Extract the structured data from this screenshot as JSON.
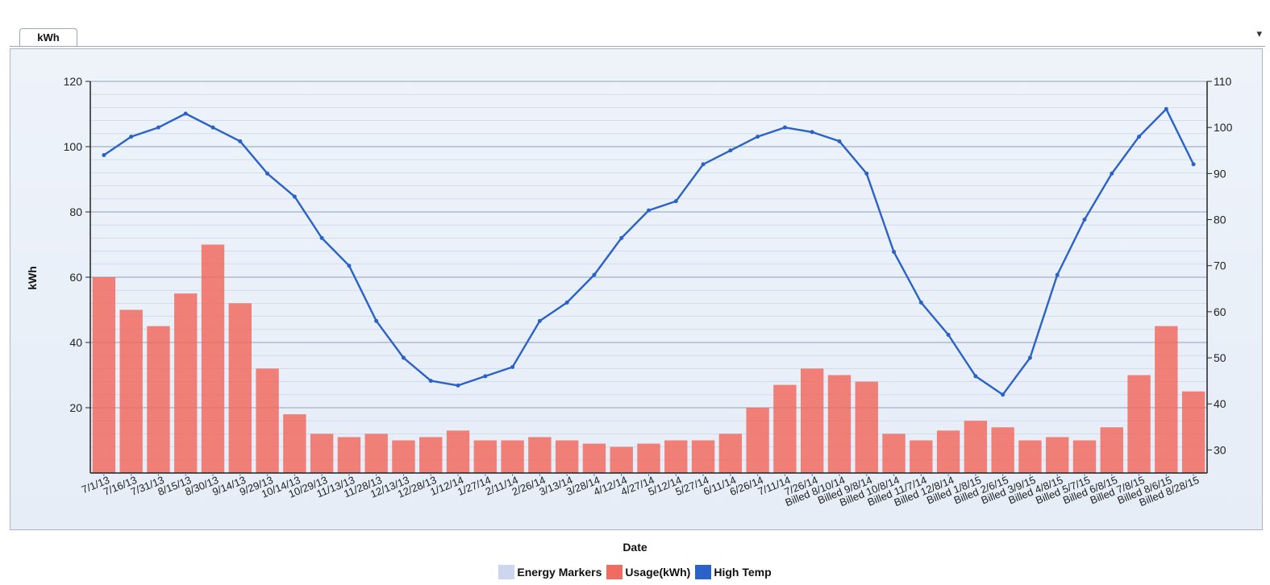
{
  "tab": {
    "label": "kWh"
  },
  "chart_data": {
    "type": "bar",
    "xlabel": "Date",
    "ylabel": "kWh",
    "ylim": [
      0,
      120
    ],
    "y2lim": [
      25,
      110
    ],
    "yticks": [
      20,
      40,
      60,
      80,
      100,
      120
    ],
    "y2ticks": [
      30,
      40,
      50,
      60,
      70,
      80,
      90,
      100,
      110
    ],
    "grid": true,
    "legend_position": "bottom",
    "colors": {
      "Energy Markers": "#cdd6ef",
      "Usage(kWh)": "#f06b60",
      "High Temp": "#2a62c9"
    },
    "x_tick_labels": [
      "7/1/13",
      "7/16/13",
      "7/31/13",
      "8/15/13",
      "8/30/13",
      "9/14/13",
      "9/29/13",
      "10/14/13",
      "10/29/13",
      "11/13/13",
      "11/28/13",
      "12/13/13",
      "12/28/13",
      "1/12/14",
      "1/27/14",
      "2/11/14",
      "2/26/14",
      "3/13/14",
      "3/28/14",
      "4/12/14",
      "4/27/14",
      "5/12/14",
      "5/27/14",
      "6/11/14",
      "6/26/14",
      "7/11/14",
      "7/26/14",
      "Billed 8/10/14",
      "Billed 9/8/14",
      "Billed 10/8/14",
      "Billed 11/7/14",
      "Billed 12/8/14",
      "Billed 1/8/15",
      "Billed 2/6/15",
      "Billed 3/9/15",
      "Billed 4/8/15",
      "Billed 5/7/15",
      "Billed 6/8/15",
      "Billed 7/8/15",
      "Billed 8/6/15",
      "Billed 8/28/15"
    ],
    "series": [
      {
        "name": "Usage(kWh)",
        "axis": "left",
        "type": "bar",
        "x": [
          "7/1/13",
          "7/16/13",
          "7/31/13",
          "8/15/13",
          "8/30/13",
          "9/14/13",
          "9/29/13",
          "10/14/13",
          "10/29/13",
          "11/13/13",
          "11/28/13",
          "12/13/13",
          "12/28/13",
          "1/12/14",
          "1/27/14",
          "2/11/14",
          "2/26/14",
          "3/13/14",
          "3/28/14",
          "4/12/14",
          "4/27/14",
          "5/12/14",
          "5/27/14",
          "6/11/14",
          "6/26/14",
          "7/11/14",
          "7/26/14",
          "8/10/14",
          "9/8/14",
          "10/8/14",
          "11/7/14",
          "12/8/14",
          "1/8/15",
          "2/6/15",
          "3/9/15",
          "4/8/15",
          "5/7/15",
          "6/8/15",
          "7/8/15",
          "8/6/15",
          "8/28/15"
        ],
        "values": [
          60,
          50,
          45,
          55,
          70,
          52,
          32,
          18,
          12,
          11,
          12,
          10,
          11,
          13,
          10,
          10,
          11,
          10,
          9,
          8,
          9,
          10,
          10,
          12,
          20,
          27,
          32,
          30,
          28,
          12,
          10,
          13,
          16,
          14,
          10,
          11,
          10,
          14,
          30,
          45,
          25
        ]
      },
      {
        "name": "High Temp",
        "axis": "right",
        "type": "line",
        "x": [
          "7/1/13",
          "7/16/13",
          "7/31/13",
          "8/15/13",
          "8/30/13",
          "9/14/13",
          "9/29/13",
          "10/14/13",
          "10/29/13",
          "11/13/13",
          "11/28/13",
          "12/13/13",
          "12/28/13",
          "1/12/14",
          "1/27/14",
          "2/11/14",
          "2/26/14",
          "3/13/14",
          "3/28/14",
          "4/12/14",
          "4/27/14",
          "5/12/14",
          "5/27/14",
          "6/11/14",
          "6/26/14",
          "7/11/14",
          "7/26/14",
          "8/10/14",
          "9/8/14",
          "10/8/14",
          "11/7/14",
          "12/8/14",
          "1/8/15",
          "2/6/15",
          "3/9/15",
          "4/8/15",
          "5/7/15",
          "6/8/15",
          "7/8/15",
          "8/6/15",
          "8/28/15"
        ],
        "values": [
          94,
          98,
          100,
          103,
          100,
          97,
          90,
          85,
          76,
          70,
          58,
          50,
          45,
          44,
          46,
          48,
          58,
          62,
          68,
          76,
          82,
          84,
          92,
          95,
          98,
          100,
          99,
          97,
          90,
          73,
          62,
          55,
          46,
          42,
          50,
          68,
          80,
          90,
          98,
          104,
          92
        ]
      }
    ],
    "legend": [
      "Energy Markers",
      "Usage(kWh)",
      "High Temp"
    ]
  }
}
